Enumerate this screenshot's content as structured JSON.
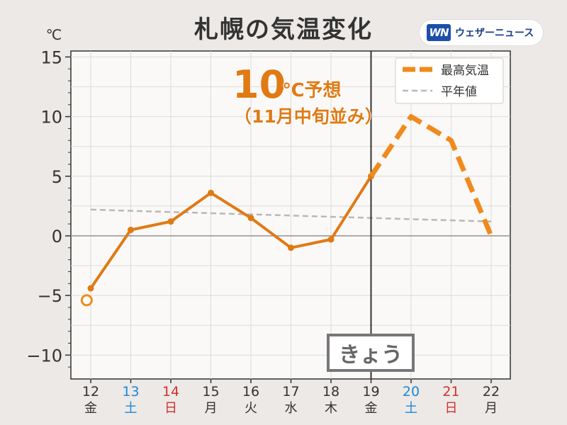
{
  "title": "札幌の気温変化",
  "brand": {
    "logo": "WN",
    "name": "ウェザーニュース"
  },
  "chart_data": {
    "type": "line",
    "title": "札幌の気温変化",
    "ylabel": "℃",
    "ylim": [
      -12,
      15.5
    ],
    "yticks": [
      15,
      10,
      5,
      0,
      -5,
      -10
    ],
    "ytick_labels": [
      "15",
      "10",
      "5",
      "0",
      "−5",
      "−10"
    ],
    "categories": [
      "12",
      "13",
      "14",
      "15",
      "16",
      "17",
      "18",
      "19",
      "20",
      "21",
      "22"
    ],
    "weekdays": [
      "金",
      "土",
      "日",
      "月",
      "火",
      "水",
      "木",
      "金",
      "土",
      "日",
      "月"
    ],
    "day_colors": [
      "#333333",
      "#1e88d6",
      "#d32f2f",
      "#333333",
      "#333333",
      "#333333",
      "#333333",
      "#333333",
      "#1e88d6",
      "#d32f2f",
      "#333333"
    ],
    "series": [
      {
        "name": "最高気温",
        "kind": "observed",
        "color": "#e07a14",
        "points": [
          [
            0,
            -4.4
          ],
          [
            1,
            0.5
          ],
          [
            2,
            1.2
          ],
          [
            3,
            3.6
          ],
          [
            4,
            1.5
          ],
          [
            5,
            -1.0
          ],
          [
            6,
            -0.3
          ],
          [
            7,
            5.0
          ]
        ]
      },
      {
        "name": "最高気温",
        "kind": "forecast",
        "color": "#f08a1c",
        "points": [
          [
            7,
            5.0
          ],
          [
            8,
            10.0
          ],
          [
            9,
            8.0
          ],
          [
            10,
            0.0
          ]
        ]
      },
      {
        "name": "平年値",
        "kind": "normal",
        "color": "#b8b8b8",
        "points": [
          [
            0,
            2.2
          ],
          [
            10,
            1.2
          ]
        ]
      }
    ],
    "marker_point": {
      "x": -0.1,
      "y": -5.4
    },
    "today_index": 7,
    "legend": {
      "position": "top-right",
      "items": [
        "最高気温",
        "平年値"
      ]
    },
    "grid": true,
    "annotation": {
      "value": "10",
      "unit": "℃予想",
      "note": "（11月中旬並み）"
    },
    "today_label": "きょう"
  }
}
